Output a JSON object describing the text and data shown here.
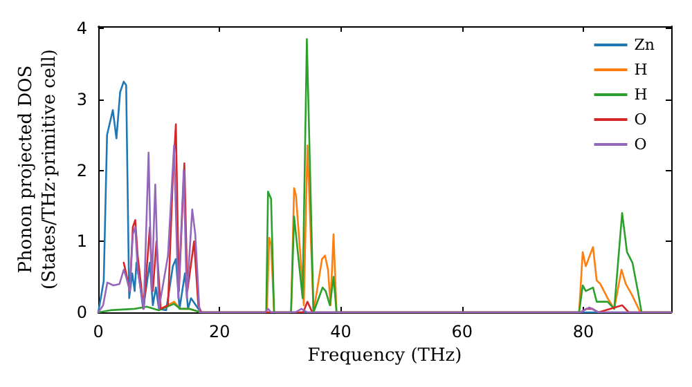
{
  "chart_data": {
    "type": "line",
    "xlabel": "Frequency (THz)",
    "ylabel": "Phonon projected DOS\n(States/THz·primitive cell)",
    "xlim": [
      0,
      94.5
    ],
    "ylim": [
      0,
      4.03
    ],
    "xticks": [
      0,
      20,
      40,
      60,
      80
    ],
    "yticks": [
      0,
      1,
      2,
      3,
      4
    ],
    "grid": false,
    "legend": "top right",
    "marker": "none",
    "line_style": "solid",
    "series": [
      {
        "name": "Zn",
        "color": "#1f77b4",
        "x": [
          0,
          0.9,
          1.45,
          2.4,
          3,
          3.6,
          4.2,
          4.6,
          5.1,
          5.6,
          6,
          6.3,
          6.8,
          7.4,
          8.5,
          9,
          9.5,
          10,
          11.2,
          12.3,
          12.8,
          13.4,
          14.3,
          14.8,
          15.3,
          16.1,
          16.9,
          94.5
        ],
        "values": [
          0,
          0.44,
          2.5,
          2.85,
          2.45,
          3.1,
          3.25,
          3.2,
          0.2,
          0.55,
          0.3,
          0.7,
          0.45,
          0.05,
          0.7,
          0.1,
          0.35,
          0.05,
          0.03,
          0.65,
          0.75,
          0.05,
          0.55,
          0.05,
          0.2,
          0.1,
          0,
          0
        ]
      },
      {
        "name": "H",
        "color": "#ff7f0e",
        "x": [
          10,
          12.5,
          13.5,
          15,
          16.9,
          27.8,
          28.2,
          28.5,
          29,
          31.8,
          32.3,
          32.6,
          33.6,
          33.9,
          34.5,
          35.5,
          36.9,
          37.4,
          37.9,
          38.3,
          38.8,
          39.3,
          79.3,
          79.9,
          80.4,
          81.6,
          82.2,
          82.8,
          84,
          85.1,
          86.3,
          87,
          88,
          89.4,
          94.5
        ],
        "values": [
          0.03,
          0.15,
          0.05,
          0.05,
          0,
          0,
          1.05,
          0.95,
          0,
          0,
          1.75,
          1.65,
          0.5,
          0.1,
          2.35,
          0,
          0.75,
          0.8,
          0.6,
          0.1,
          1.1,
          0,
          0,
          0.85,
          0.65,
          0.92,
          0.45,
          0.4,
          0.2,
          0.05,
          0.6,
          0.4,
          0.25,
          0,
          0
        ]
      },
      {
        "name": "H",
        "color": "#2ca02c",
        "x": [
          0,
          2,
          6,
          8,
          10,
          12.5,
          13.5,
          15,
          16.9,
          27.7,
          28,
          28.5,
          29,
          31.8,
          32.3,
          33.7,
          34.4,
          35.5,
          37,
          37.5,
          38.2,
          38.8,
          39.3,
          79.3,
          79.9,
          80.4,
          81.6,
          82.2,
          84,
          85.1,
          86.4,
          87.2,
          88.1,
          89,
          89.6,
          94.5
        ],
        "values": [
          0,
          0.03,
          0.05,
          0.08,
          0.03,
          0.12,
          0.05,
          0.05,
          0,
          0,
          1.7,
          1.6,
          0,
          0,
          1.35,
          0.2,
          3.85,
          0,
          0.35,
          0.3,
          0.1,
          0.5,
          0,
          0,
          0.38,
          0.3,
          0.35,
          0.15,
          0.15,
          0.05,
          1.4,
          0.85,
          0.7,
          0.3,
          0,
          0
        ]
      },
      {
        "name": "O",
        "color": "#d62728",
        "x": [
          4.2,
          4.6,
          5.2,
          5.7,
          6.1,
          6.5,
          7.5,
          8.5,
          9,
          9.6,
          10.3,
          11.5,
          12.3,
          12.8,
          13.3,
          14.2,
          14.7,
          15.8,
          16.5,
          17,
          33.8,
          34.5,
          35.3,
          79.5,
          80.5,
          81.5,
          82.5,
          86.4,
          87.5,
          94.5
        ],
        "values": [
          0.7,
          0.55,
          0.3,
          1.2,
          1.3,
          0.8,
          0.05,
          1.2,
          0.3,
          1.0,
          0.05,
          0.1,
          1.9,
          2.65,
          0.3,
          2.1,
          0.3,
          1.0,
          0.1,
          0,
          0,
          0.15,
          0,
          0,
          0.05,
          0.05,
          0,
          0.1,
          0,
          0
        ]
      },
      {
        "name": "O",
        "color": "#9467bd",
        "x": [
          0,
          0.8,
          1.5,
          2.5,
          3.5,
          4.2,
          4.6,
          5.2,
          5.7,
          6.1,
          6.5,
          7.5,
          8.3,
          8.8,
          9.4,
          10,
          11.5,
          12.5,
          13.2,
          14.1,
          14.6,
          15.5,
          16,
          16.7,
          27.5,
          28,
          28.5,
          32.5,
          33.5,
          34.5,
          79.5,
          81,
          82.5,
          94.5
        ],
        "values": [
          0,
          0.1,
          0.42,
          0.38,
          0.4,
          0.6,
          0.5,
          0.3,
          1.1,
          1.2,
          0.6,
          0.05,
          2.25,
          0.3,
          1.8,
          0.05,
          0.8,
          2.35,
          0.2,
          2.0,
          0.2,
          1.45,
          1.1,
          0,
          0,
          0.05,
          0,
          0,
          0.05,
          0,
          0,
          0.07,
          0,
          0
        ]
      }
    ]
  }
}
